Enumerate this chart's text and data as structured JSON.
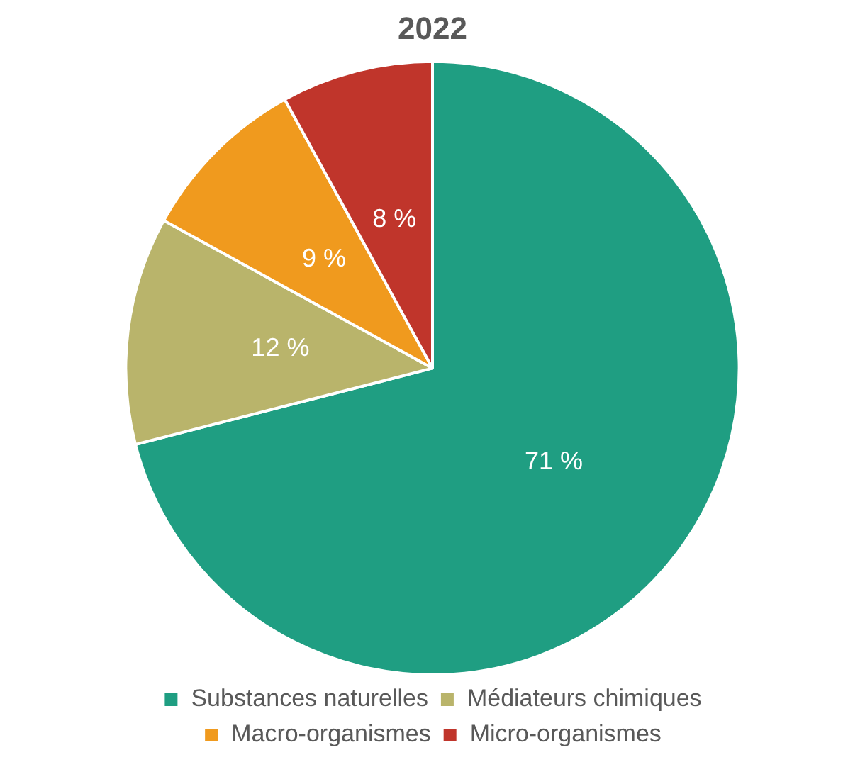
{
  "chart_data": {
    "type": "pie",
    "title": "2022",
    "categories": [
      "Substances naturelles",
      "Médiateurs chimiques",
      "Macro-organismes",
      "Micro-organismes"
    ],
    "values": [
      71,
      12,
      9,
      8
    ],
    "colors": [
      "#1f9e82",
      "#b9b46b",
      "#f09a1e",
      "#c0352b"
    ],
    "value_labels": [
      "71 %",
      "12 %",
      "9 %",
      "8 %"
    ],
    "legend": "bottom"
  }
}
